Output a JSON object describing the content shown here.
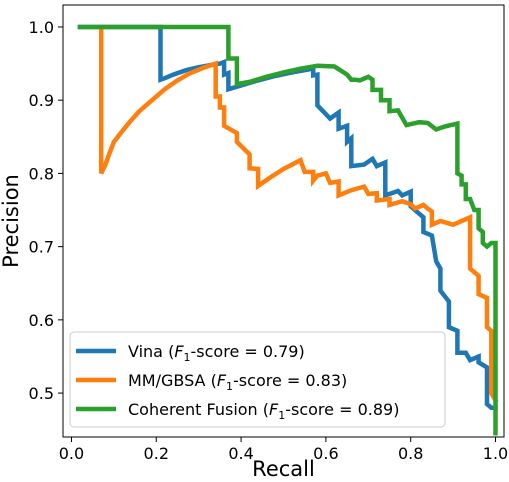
{
  "chart_data": {
    "type": "line",
    "title": "",
    "xlabel": "Recall",
    "ylabel": "Precision",
    "xlim": [
      -0.02,
      1.02
    ],
    "ylim": [
      0.44,
      1.03
    ],
    "xticks": [
      0.0,
      0.2,
      0.4,
      0.6,
      0.8,
      1.0
    ],
    "yticks": [
      0.5,
      0.6,
      0.7,
      0.8,
      0.9,
      1.0
    ],
    "xtick_labels": [
      "0.0",
      "0.2",
      "0.4",
      "0.6",
      "0.8",
      "1.0"
    ],
    "ytick_labels": [
      "0.5",
      "0.6",
      "0.7",
      "0.8",
      "0.9",
      "1.0"
    ],
    "grid": false,
    "legend_position": "lower-left",
    "series": [
      {
        "name": "Vina (F1-score = 0.79)",
        "legend_prefix": "Vina (",
        "legend_f": "F",
        "legend_sub": "1",
        "legend_suffix": "-score = 0.79)",
        "color": "#1f77b4",
        "points": [
          [
            0.02,
            1.0
          ],
          [
            0.21,
            1.0
          ],
          [
            0.21,
            0.928
          ],
          [
            0.22,
            0.93
          ],
          [
            0.24,
            0.935
          ],
          [
            0.27,
            0.941
          ],
          [
            0.3,
            0.945
          ],
          [
            0.33,
            0.948
          ],
          [
            0.35,
            0.95
          ],
          [
            0.36,
            0.952
          ],
          [
            0.36,
            0.935
          ],
          [
            0.37,
            0.937
          ],
          [
            0.37,
            0.915
          ],
          [
            0.4,
            0.92
          ],
          [
            0.44,
            0.927
          ],
          [
            0.48,
            0.933
          ],
          [
            0.52,
            0.938
          ],
          [
            0.56,
            0.942
          ],
          [
            0.57,
            0.944
          ],
          [
            0.57,
            0.934
          ],
          [
            0.58,
            0.935
          ],
          [
            0.58,
            0.893
          ],
          [
            0.61,
            0.875
          ],
          [
            0.63,
            0.883
          ],
          [
            0.63,
            0.861
          ],
          [
            0.65,
            0.865
          ],
          [
            0.65,
            0.843
          ],
          [
            0.66,
            0.848
          ],
          [
            0.66,
            0.81
          ],
          [
            0.69,
            0.812
          ],
          [
            0.71,
            0.82
          ],
          [
            0.72,
            0.81
          ],
          [
            0.74,
            0.815
          ],
          [
            0.74,
            0.77
          ],
          [
            0.77,
            0.776
          ],
          [
            0.78,
            0.77
          ],
          [
            0.8,
            0.775
          ],
          [
            0.8,
            0.755
          ],
          [
            0.82,
            0.745
          ],
          [
            0.83,
            0.74
          ],
          [
            0.83,
            0.72
          ],
          [
            0.85,
            0.715
          ],
          [
            0.86,
            0.68
          ],
          [
            0.87,
            0.67
          ],
          [
            0.87,
            0.64
          ],
          [
            0.89,
            0.625
          ],
          [
            0.89,
            0.59
          ],
          [
            0.91,
            0.585
          ],
          [
            0.91,
            0.555
          ],
          [
            0.93,
            0.555
          ],
          [
            0.94,
            0.545
          ],
          [
            0.96,
            0.55
          ],
          [
            0.96,
            0.542
          ],
          [
            0.98,
            0.535
          ],
          [
            0.98,
            0.485
          ],
          [
            0.99,
            0.48
          ],
          [
            1.0,
            0.48
          ]
        ]
      },
      {
        "name": "MM/GBSA (F1-score = 0.83)",
        "legend_prefix": "MM/GBSA (",
        "legend_f": "F",
        "legend_sub": "1",
        "legend_suffix": "-score = 0.83)",
        "color": "#ff7f0e",
        "points": [
          [
            0.07,
            1.0
          ],
          [
            0.07,
            0.8
          ],
          [
            0.08,
            0.812
          ],
          [
            0.09,
            0.828
          ],
          [
            0.1,
            0.843
          ],
          [
            0.12,
            0.858
          ],
          [
            0.14,
            0.872
          ],
          [
            0.16,
            0.885
          ],
          [
            0.19,
            0.9
          ],
          [
            0.22,
            0.915
          ],
          [
            0.25,
            0.927
          ],
          [
            0.28,
            0.937
          ],
          [
            0.31,
            0.944
          ],
          [
            0.33,
            0.948
          ],
          [
            0.34,
            0.95
          ],
          [
            0.34,
            0.905
          ],
          [
            0.35,
            0.905
          ],
          [
            0.35,
            0.89
          ],
          [
            0.36,
            0.89
          ],
          [
            0.36,
            0.865
          ],
          [
            0.39,
            0.855
          ],
          [
            0.39,
            0.843
          ],
          [
            0.42,
            0.826
          ],
          [
            0.42,
            0.807
          ],
          [
            0.44,
            0.806
          ],
          [
            0.44,
            0.783
          ],
          [
            0.47,
            0.795
          ],
          [
            0.5,
            0.806
          ],
          [
            0.54,
            0.818
          ],
          [
            0.55,
            0.802
          ],
          [
            0.57,
            0.802
          ],
          [
            0.57,
            0.79
          ],
          [
            0.58,
            0.797
          ],
          [
            0.6,
            0.8
          ],
          [
            0.61,
            0.787
          ],
          [
            0.63,
            0.789
          ],
          [
            0.63,
            0.77
          ],
          [
            0.66,
            0.777
          ],
          [
            0.69,
            0.782
          ],
          [
            0.7,
            0.772
          ],
          [
            0.72,
            0.773
          ],
          [
            0.72,
            0.763
          ],
          [
            0.75,
            0.765
          ],
          [
            0.75,
            0.757
          ],
          [
            0.78,
            0.762
          ],
          [
            0.8,
            0.758
          ],
          [
            0.81,
            0.752
          ],
          [
            0.83,
            0.757
          ],
          [
            0.84,
            0.752
          ],
          [
            0.85,
            0.748
          ],
          [
            0.85,
            0.73
          ],
          [
            0.87,
            0.735
          ],
          [
            0.9,
            0.73
          ],
          [
            0.94,
            0.74
          ],
          [
            0.94,
            0.67
          ],
          [
            0.96,
            0.66
          ],
          [
            0.96,
            0.635
          ],
          [
            0.98,
            0.63
          ],
          [
            0.98,
            0.59
          ],
          [
            0.99,
            0.585
          ],
          [
            0.99,
            0.5
          ],
          [
            1.0,
            0.49
          ]
        ]
      },
      {
        "name": "Coherent Fusion (F1-score = 0.89)",
        "legend_prefix": "Coherent Fusion (",
        "legend_f": "F",
        "legend_sub": "1",
        "legend_suffix": "-score = 0.89)",
        "color": "#2ca02c",
        "points": [
          [
            0.02,
            1.0
          ],
          [
            0.37,
            1.0
          ],
          [
            0.37,
            0.957
          ],
          [
            0.39,
            0.957
          ],
          [
            0.39,
            0.922
          ],
          [
            0.42,
            0.925
          ],
          [
            0.46,
            0.932
          ],
          [
            0.5,
            0.938
          ],
          [
            0.54,
            0.943
          ],
          [
            0.58,
            0.947
          ],
          [
            0.62,
            0.946
          ],
          [
            0.65,
            0.935
          ],
          [
            0.66,
            0.928
          ],
          [
            0.67,
            0.928
          ],
          [
            0.68,
            0.927
          ],
          [
            0.7,
            0.932
          ],
          [
            0.71,
            0.928
          ],
          [
            0.71,
            0.914
          ],
          [
            0.73,
            0.914
          ],
          [
            0.73,
            0.9
          ],
          [
            0.75,
            0.9
          ],
          [
            0.75,
            0.885
          ],
          [
            0.77,
            0.886
          ],
          [
            0.79,
            0.866
          ],
          [
            0.82,
            0.87
          ],
          [
            0.84,
            0.869
          ],
          [
            0.86,
            0.86
          ],
          [
            0.88,
            0.864
          ],
          [
            0.91,
            0.868
          ],
          [
            0.91,
            0.8
          ],
          [
            0.92,
            0.797
          ],
          [
            0.92,
            0.785
          ],
          [
            0.93,
            0.785
          ],
          [
            0.93,
            0.765
          ],
          [
            0.94,
            0.765
          ],
          [
            0.95,
            0.75
          ],
          [
            0.96,
            0.75
          ],
          [
            0.96,
            0.725
          ],
          [
            0.97,
            0.72
          ],
          [
            0.97,
            0.705
          ],
          [
            0.98,
            0.7
          ],
          [
            0.99,
            0.705
          ],
          [
            1.0,
            0.705
          ],
          [
            1.0,
            0.445
          ]
        ]
      }
    ]
  }
}
